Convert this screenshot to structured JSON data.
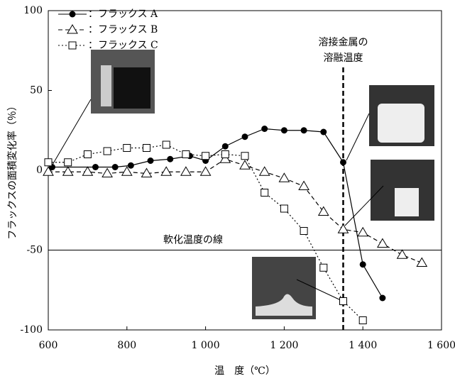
{
  "chart_data": {
    "type": "line",
    "xlabel": "温　度（℃）",
    "ylabel": "フラックスの面積変化率（％）",
    "xlim": [
      600,
      1600
    ],
    "xticks": [
      600,
      800,
      {
        "value": 1000,
        "label": "1 000"
      },
      {
        "value": 1200,
        "label": "1 200"
      },
      {
        "value": 1400,
        "label": "1 400"
      },
      {
        "value": 1600,
        "label": "1 600"
      }
    ],
    "ylim": [
      -100,
      100
    ],
    "yticks": [
      -100,
      -50,
      0,
      50,
      100
    ],
    "series": [
      {
        "name": "：フラックス A",
        "color": "#000000",
        "dash": "solid",
        "marker": "circle",
        "x": [
          610,
          720,
          770,
          810,
          860,
          910,
          960,
          1000,
          1050,
          1100,
          1150,
          1200,
          1250,
          1300,
          1350,
          1400,
          1450
        ],
        "values": [
          2,
          2,
          2,
          3,
          6,
          7,
          9,
          6,
          15,
          21,
          26,
          25,
          25,
          24,
          5,
          -59,
          -80
        ]
      },
      {
        "name": "：フラックス B",
        "color": "#000000",
        "dash": "dashed",
        "marker": "triangle",
        "x": [
          600,
          650,
          700,
          750,
          800,
          850,
          900,
          950,
          1000,
          1050,
          1100,
          1150,
          1200,
          1250,
          1300,
          1350,
          1400,
          1450,
          1500,
          1550
        ],
        "values": [
          -1,
          -1,
          -1,
          -2,
          -1,
          -2,
          -1,
          -1,
          -1,
          7,
          3,
          -1,
          -5,
          -10,
          -26,
          -37,
          -39,
          -46,
          -53,
          -58
        ]
      },
      {
        "name": "：フラックス C",
        "color": "#000000",
        "dash": "dotted",
        "marker": "square",
        "x": [
          600,
          650,
          700,
          750,
          800,
          850,
          900,
          950,
          1000,
          1050,
          1100,
          1150,
          1200,
          1250,
          1300,
          1350,
          1400
        ],
        "values": [
          5,
          5,
          10,
          12,
          14,
          14,
          16,
          10,
          9,
          10,
          9,
          -14,
          -24,
          -38,
          -61,
          -82,
          -94
        ]
      }
    ],
    "hline": {
      "value": -50,
      "label": "軟化温度の線"
    },
    "vline": {
      "value": 1350,
      "label_lines": [
        "溶接金属の",
        "溶融温度"
      ]
    }
  }
}
